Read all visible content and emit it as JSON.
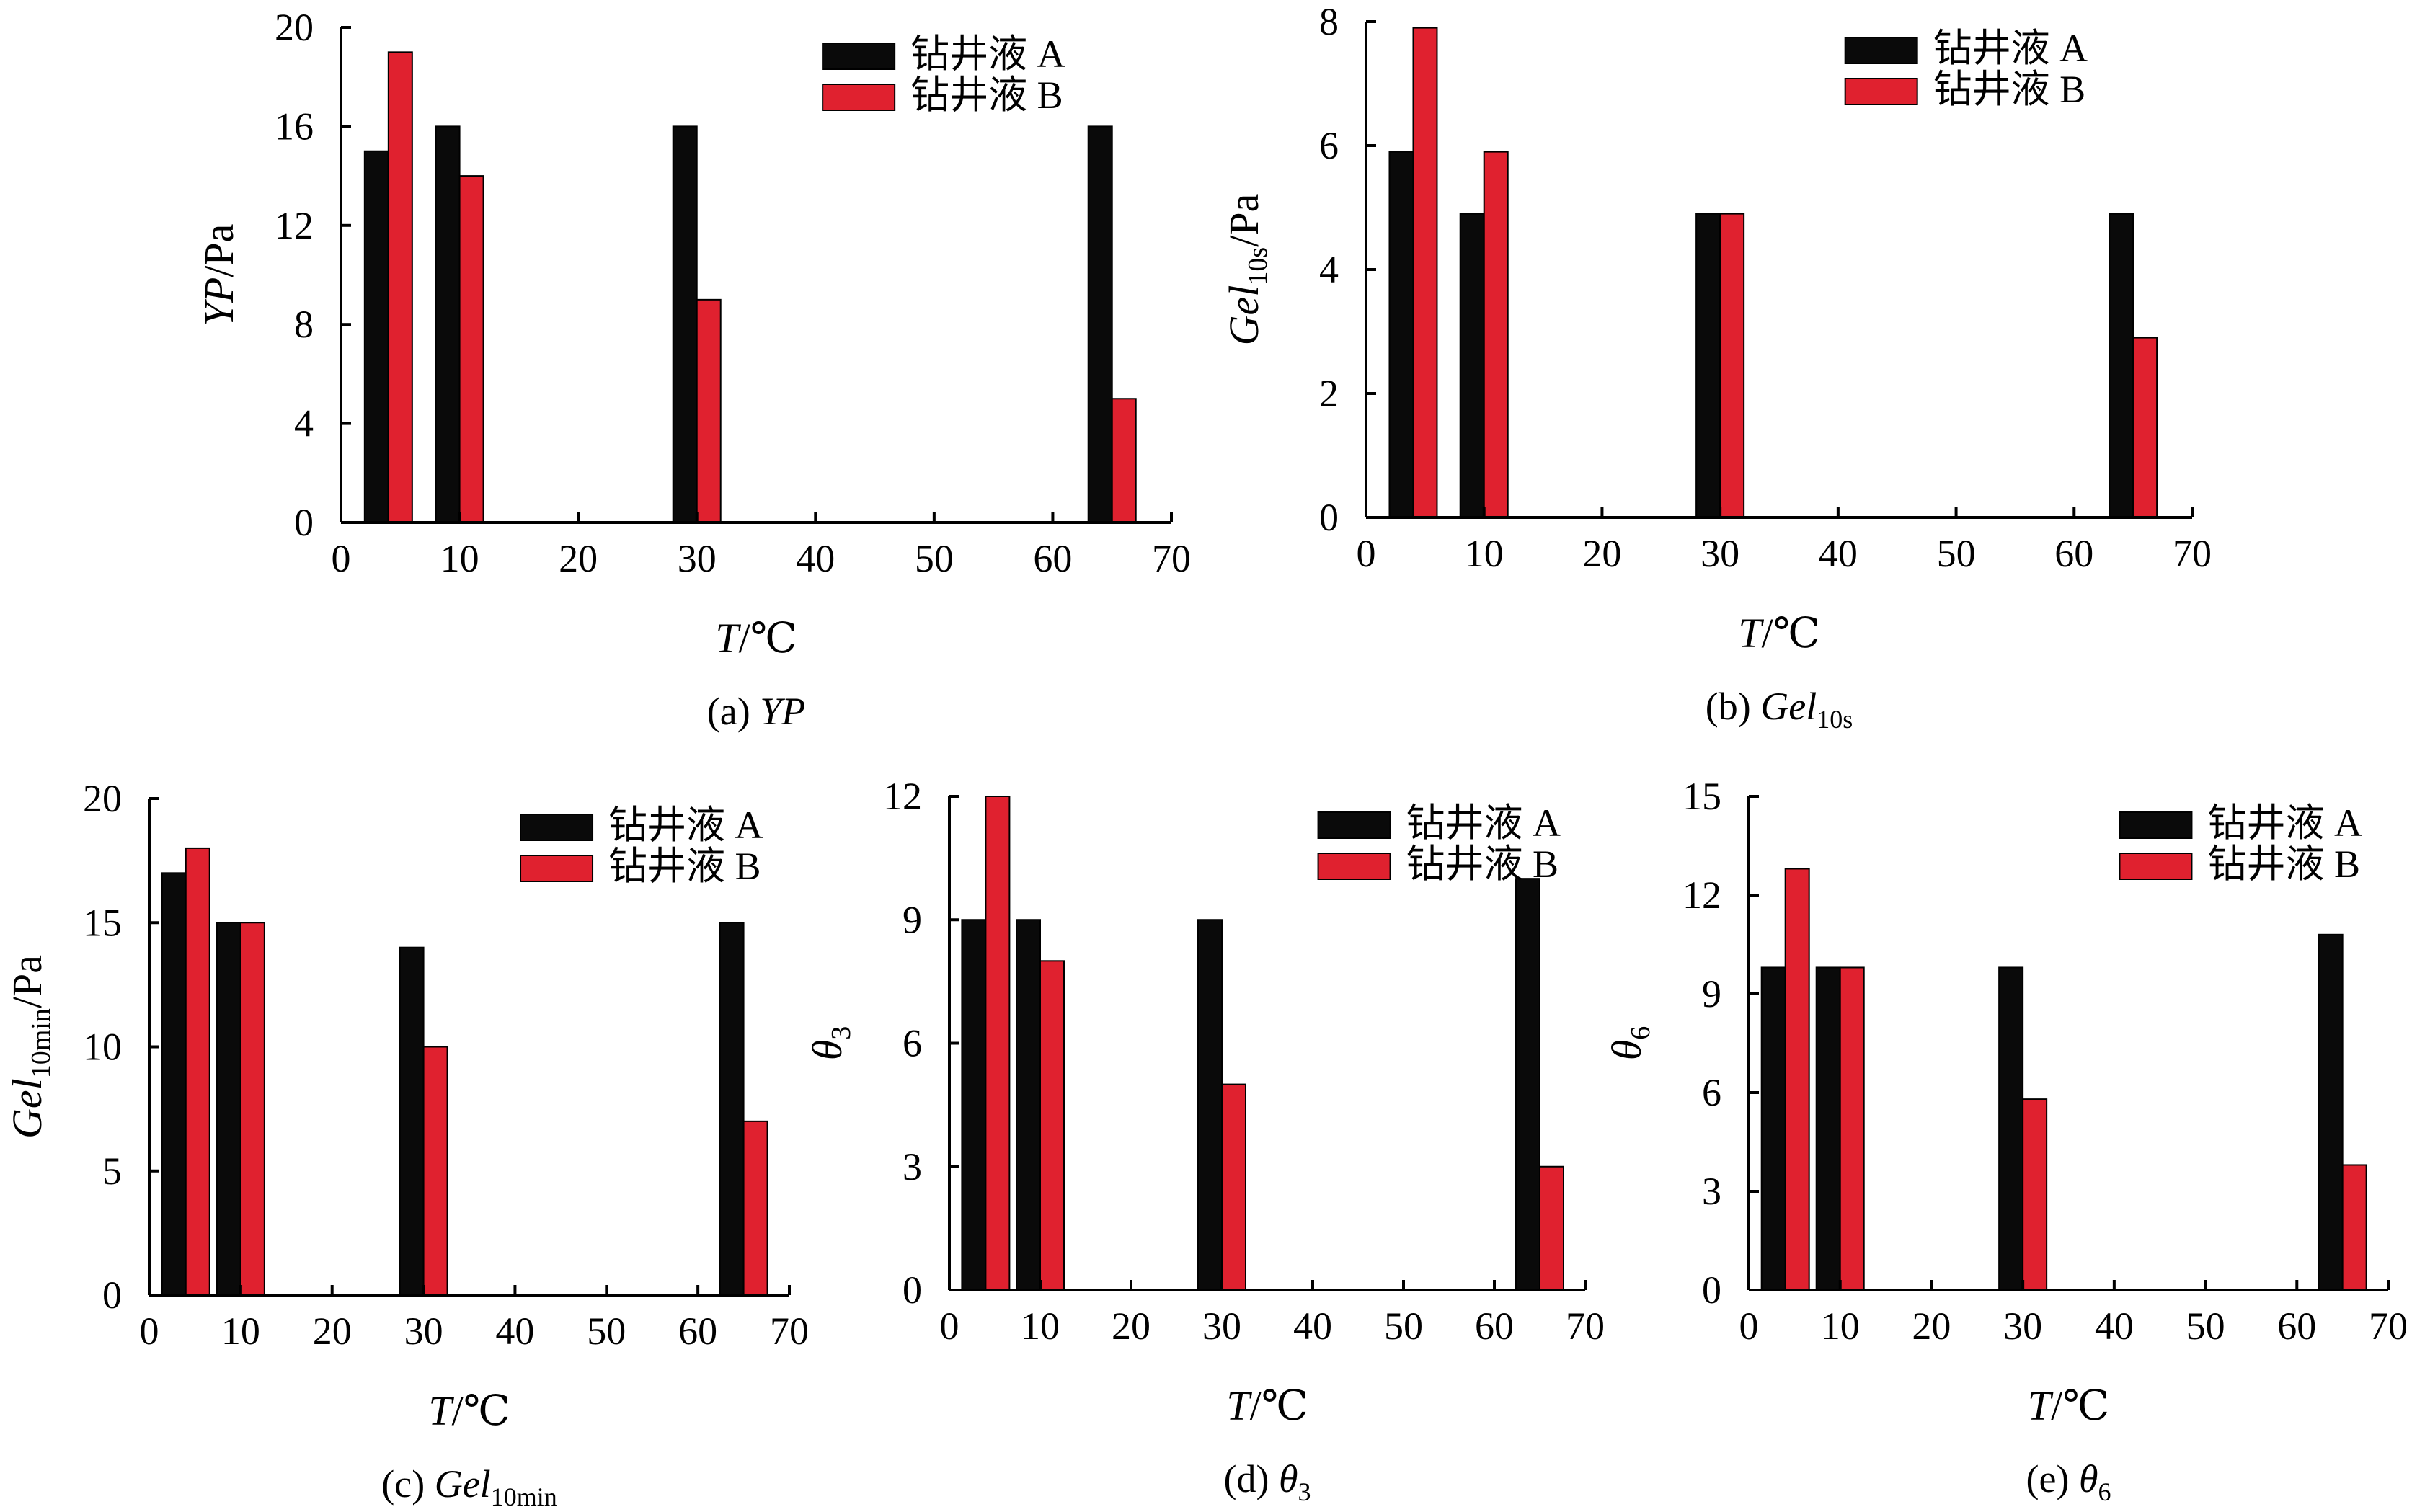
{
  "colors": {
    "series_a": "#0a0a0a",
    "series_b": "#e0212f",
    "axis": "#000000"
  },
  "legend_labels": [
    "钻井液 A",
    "钻井液 B"
  ],
  "chart_data": [
    {
      "type": "bar",
      "caption_prefix": "(a) ",
      "caption_main": "YP",
      "caption_sub": "",
      "ylabel_main": "YP",
      "ylabel_sub": "",
      "ylabel_unit": "/Pa",
      "xlabel_main": "T",
      "xlabel_unit": "/℃",
      "xlim": [
        0,
        70
      ],
      "xticks": [
        0,
        10,
        20,
        30,
        40,
        50,
        60,
        70
      ],
      "ylim": [
        0,
        20
      ],
      "yticks": [
        0,
        4,
        8,
        12,
        16,
        20
      ],
      "x": [
        4,
        10,
        30,
        65
      ],
      "series": [
        {
          "name": "钻井液 A",
          "values": [
            15,
            16,
            16,
            16
          ]
        },
        {
          "name": "钻井液 B",
          "values": [
            19,
            14,
            9,
            5
          ]
        }
      ],
      "legend": "top-right"
    },
    {
      "type": "bar",
      "caption_prefix": "(b) ",
      "caption_main": "Gel",
      "caption_sub": "10s",
      "ylabel_main": "Gel",
      "ylabel_sub": "10s",
      "ylabel_unit": "/Pa",
      "xlabel_main": "T",
      "xlabel_unit": "/℃",
      "xlim": [
        0,
        70
      ],
      "xticks": [
        0,
        10,
        20,
        30,
        40,
        50,
        60,
        70
      ],
      "ylim": [
        0,
        8
      ],
      "yticks": [
        0,
        2,
        4,
        6,
        8
      ],
      "x": [
        4,
        10,
        30,
        65
      ],
      "series": [
        {
          "name": "钻井液 A",
          "values": [
            5.9,
            4.9,
            4.9,
            4.9
          ]
        },
        {
          "name": "钻井液 B",
          "values": [
            7.9,
            5.9,
            4.9,
            2.9
          ]
        }
      ],
      "legend": "top-right"
    },
    {
      "type": "bar",
      "caption_prefix": "(c) ",
      "caption_main": "Gel",
      "caption_sub": "10min",
      "ylabel_main": "Gel",
      "ylabel_sub": "10min",
      "ylabel_unit": "/Pa",
      "xlabel_main": "T",
      "xlabel_unit": "/℃",
      "xlim": [
        0,
        70
      ],
      "xticks": [
        0,
        10,
        20,
        30,
        40,
        50,
        60,
        70
      ],
      "ylim": [
        0,
        20
      ],
      "yticks": [
        0,
        5,
        10,
        15,
        20
      ],
      "x": [
        4,
        10,
        30,
        65
      ],
      "series": [
        {
          "name": "钻井液 A",
          "values": [
            17,
            15,
            14,
            15
          ]
        },
        {
          "name": "钻井液 B",
          "values": [
            18,
            15,
            10,
            7
          ]
        }
      ],
      "legend": "top-right"
    },
    {
      "type": "bar",
      "caption_prefix": "(d) ",
      "caption_main": "θ",
      "caption_sub": "3",
      "ylabel_main": "θ",
      "ylabel_sub": "3",
      "ylabel_unit": "",
      "xlabel_main": "T",
      "xlabel_unit": "/℃",
      "xlim": [
        0,
        70
      ],
      "xticks": [
        0,
        10,
        20,
        30,
        40,
        50,
        60,
        70
      ],
      "ylim": [
        0,
        12
      ],
      "yticks": [
        0,
        3,
        6,
        9,
        12
      ],
      "x": [
        4,
        10,
        30,
        65
      ],
      "series": [
        {
          "name": "钻井液 A",
          "values": [
            9,
            9,
            9,
            10
          ]
        },
        {
          "name": "钻井液 B",
          "values": [
            12,
            8,
            5,
            3
          ]
        }
      ],
      "legend": "top-right"
    },
    {
      "type": "bar",
      "caption_prefix": "(e) ",
      "caption_main": "θ",
      "caption_sub": "6",
      "ylabel_main": "θ",
      "ylabel_sub": "6",
      "ylabel_unit": "",
      "xlabel_main": "T",
      "xlabel_unit": "/℃",
      "xlim": [
        0,
        70
      ],
      "xticks": [
        0,
        10,
        20,
        30,
        40,
        50,
        60,
        70
      ],
      "ylim": [
        0,
        15
      ],
      "yticks": [
        0,
        3,
        6,
        9,
        12,
        15
      ],
      "x": [
        4,
        10,
        30,
        65
      ],
      "series": [
        {
          "name": "钻井液 A",
          "values": [
            9.8,
            9.8,
            9.8,
            10.8
          ]
        },
        {
          "name": "钻井液 B",
          "values": [
            12.8,
            9.8,
            5.8,
            3.8
          ]
        }
      ],
      "legend": "top-right"
    }
  ]
}
